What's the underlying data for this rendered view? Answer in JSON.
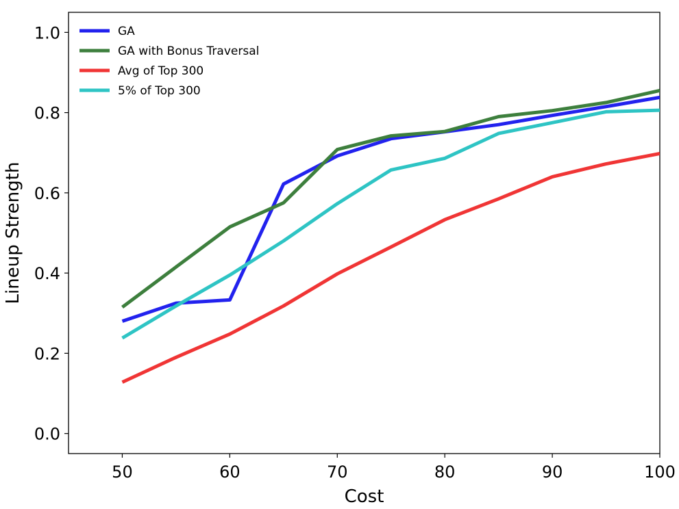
{
  "chart_data": {
    "type": "line",
    "title": "",
    "xlabel": "Cost",
    "ylabel": "Lineup Strength",
    "xlim": [
      45,
      100
    ],
    "ylim": [
      -0.05,
      1.05
    ],
    "xticks": [
      50,
      60,
      70,
      80,
      90,
      100
    ],
    "yticks": [
      0.0,
      0.2,
      0.4,
      0.6,
      0.8,
      1.0
    ],
    "xtick_labels": [
      "50",
      "60",
      "70",
      "80",
      "90",
      "100"
    ],
    "ytick_labels": [
      "0.0",
      "0.2",
      "0.4",
      "0.6",
      "0.8",
      "1.0"
    ],
    "grid": false,
    "legend_position": "top-left",
    "x": [
      50,
      55,
      60,
      65,
      70,
      75,
      80,
      85,
      90,
      95,
      100
    ],
    "series": [
      {
        "name": "GA",
        "color": "#2222ee",
        "values": [
          0.28,
          0.325,
          0.333,
          0.622,
          0.692,
          0.735,
          0.752,
          0.77,
          0.793,
          0.815,
          0.838
        ]
      },
      {
        "name": "GA with Bonus Traversal",
        "color": "#3d7f3d",
        "values": [
          0.315,
          0.415,
          0.515,
          0.575,
          0.708,
          0.742,
          0.753,
          0.79,
          0.805,
          0.825,
          0.855
        ]
      },
      {
        "name": "Avg of Top 300",
        "color": "#f03535",
        "values": [
          0.128,
          0.19,
          0.248,
          0.318,
          0.398,
          0.465,
          0.533,
          0.585,
          0.64,
          0.672,
          0.698
        ]
      },
      {
        "name": "5% of Top 300",
        "color": "#2ec4c4",
        "values": [
          0.238,
          0.318,
          0.395,
          0.48,
          0.573,
          0.657,
          0.686,
          0.748,
          0.775,
          0.802,
          0.806
        ]
      }
    ]
  }
}
